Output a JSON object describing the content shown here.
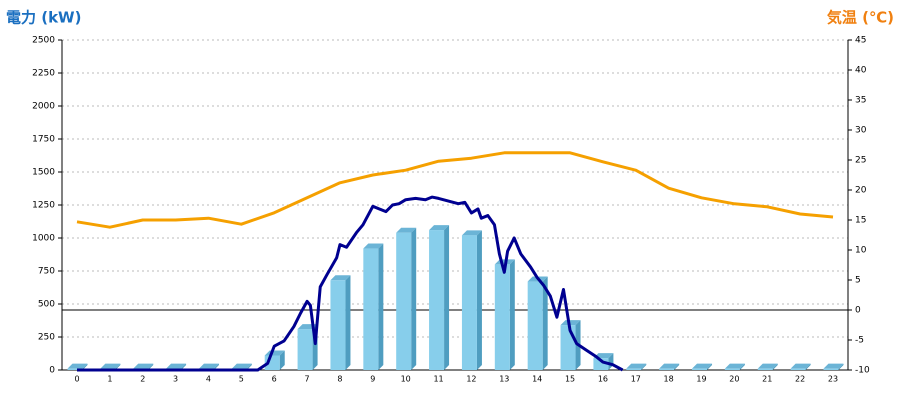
{
  "chart_data": {
    "type": "bar-line",
    "y_label": "電力 (kW)",
    "y2_label": "気温 (℃)",
    "categories": [
      "0",
      "1",
      "2",
      "3",
      "4",
      "5",
      "6",
      "7",
      "8",
      "9",
      "10",
      "11",
      "12",
      "13",
      "14",
      "15",
      "16",
      "17",
      "18",
      "19",
      "20",
      "21",
      "22",
      "23"
    ],
    "ylim": [
      0,
      2500
    ],
    "yticks": [
      0,
      250,
      500,
      750,
      1000,
      1250,
      1500,
      1750,
      2000,
      2250,
      2500
    ],
    "y2lim": [
      -10,
      45
    ],
    "y2ticks": [
      -10,
      -5,
      0,
      5,
      10,
      15,
      20,
      25,
      30,
      35,
      40,
      45
    ],
    "grid": true,
    "series": [
      {
        "type": "bar",
        "color": "#87ceeb",
        "values": [
          10,
          10,
          10,
          10,
          10,
          10,
          110,
          310,
          680,
          920,
          1040,
          1060,
          1020,
          800,
          670,
          340,
          90,
          10,
          10,
          10,
          10,
          10,
          10,
          10
        ]
      },
      {
        "type": "line",
        "axis": "y2",
        "color": "#f5a000",
        "values": [
          14.7,
          13.8,
          15,
          15,
          15.3,
          14.3,
          16.2,
          18.7,
          21.2,
          22.5,
          23.3,
          24.8,
          25.3,
          26.2,
          26.2,
          26.2,
          24.7,
          23.3,
          20.3,
          18.7,
          17.7,
          17.2,
          16,
          15.5
        ]
      },
      {
        "type": "line",
        "color": "#000090",
        "x": [
          0,
          5.5,
          5.8,
          6,
          6.3,
          6.6,
          6.8,
          7,
          7.1,
          7.25,
          7.4,
          7.6,
          7.9,
          8,
          8.2,
          8.5,
          8.7,
          9,
          9.2,
          9.4,
          9.6,
          9.8,
          10,
          10.3,
          10.6,
          10.8,
          11,
          11.3,
          11.6,
          11.8,
          12,
          12.2,
          12.3,
          12.5,
          12.7,
          12.85,
          13,
          13.1,
          13.3,
          13.5,
          13.8,
          14,
          14.2,
          14.4,
          14.6,
          14.8,
          15,
          15.2,
          15.5,
          15.8,
          16,
          16.3,
          16.6
        ],
        "values": [
          0,
          0,
          50,
          180,
          220,
          330,
          430,
          520,
          490,
          200,
          630,
          720,
          850,
          950,
          930,
          1040,
          1100,
          1240,
          1220,
          1200,
          1250,
          1260,
          1290,
          1300,
          1290,
          1310,
          1300,
          1280,
          1260,
          1270,
          1190,
          1220,
          1150,
          1170,
          1100,
          880,
          740,
          900,
          1000,
          880,
          780,
          700,
          640,
          560,
          400,
          610,
          300,
          200,
          150,
          100,
          60,
          40,
          0
        ]
      }
    ]
  }
}
